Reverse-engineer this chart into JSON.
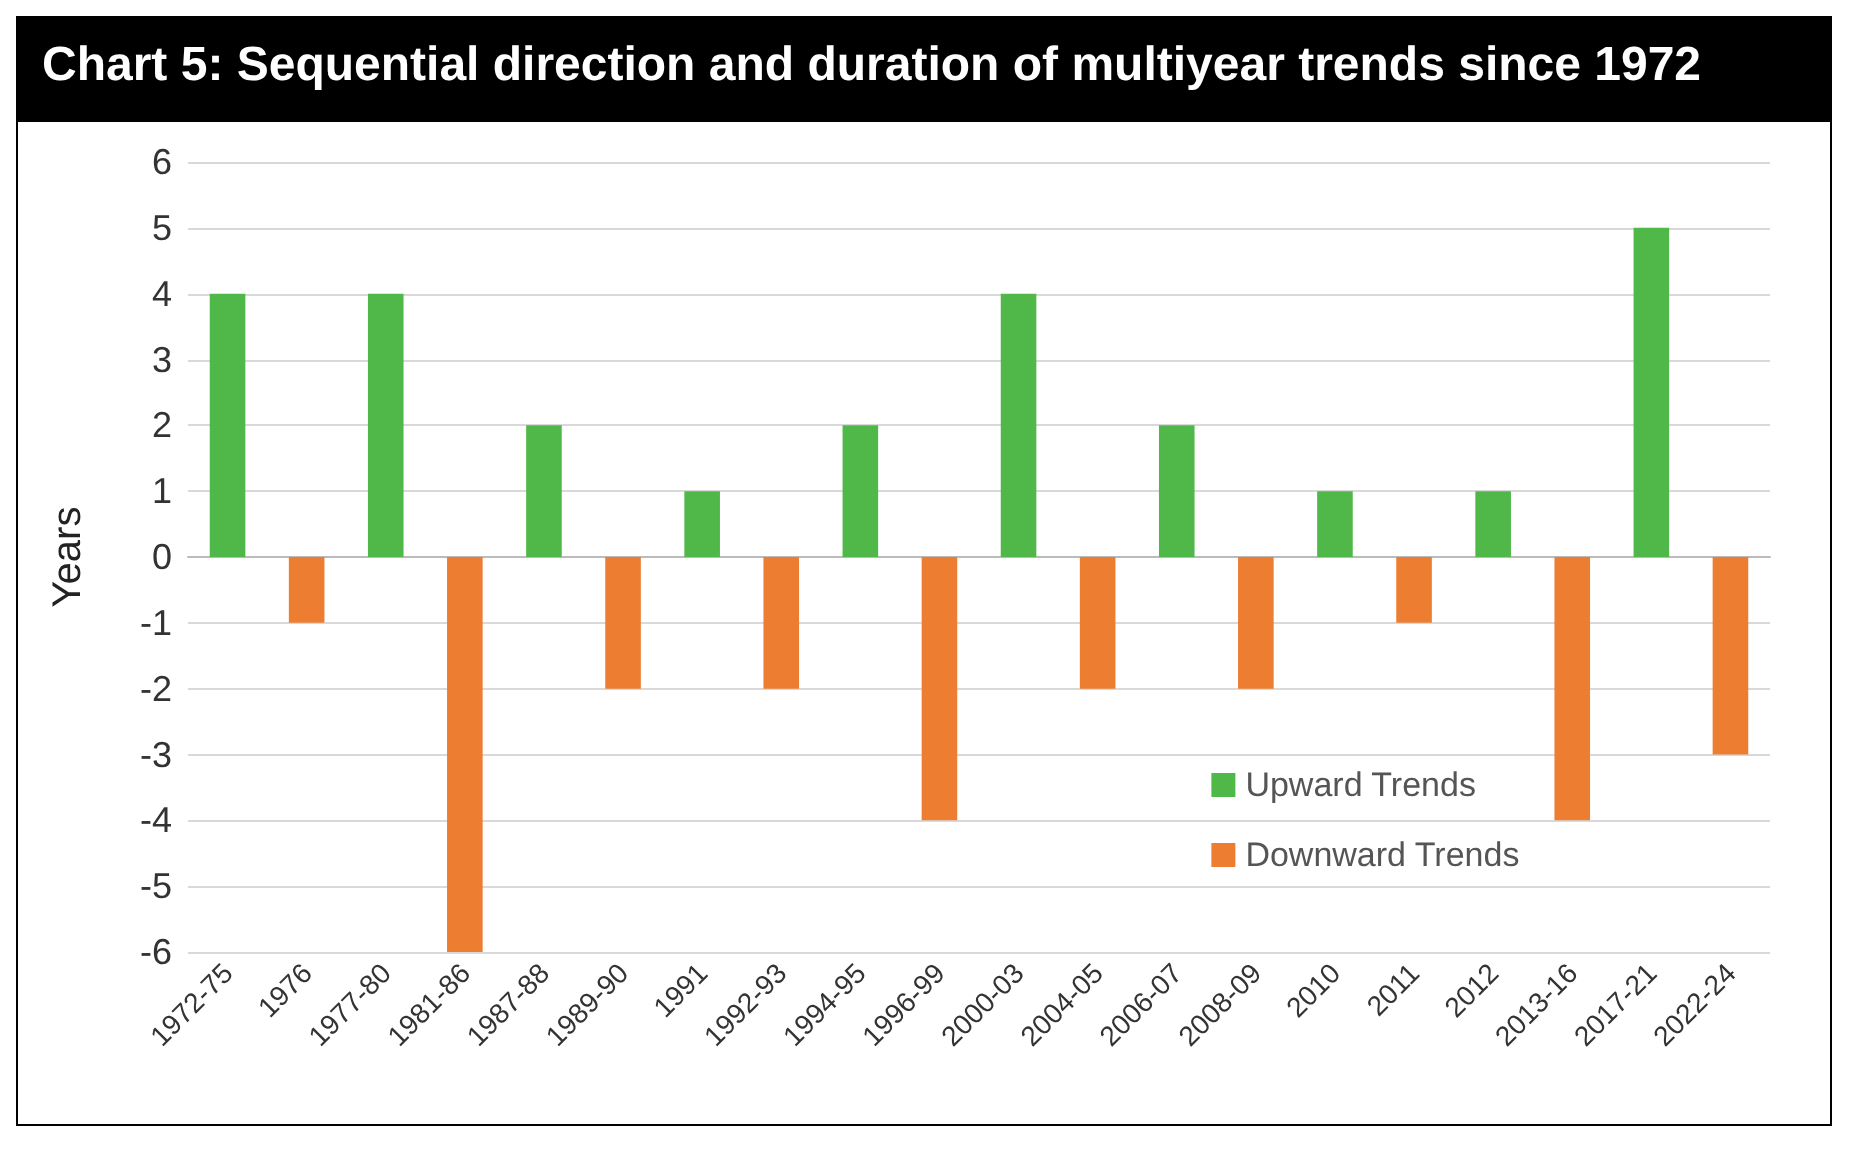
{
  "chart_data": {
    "type": "bar",
    "title": "Chart 5: Sequential direction and duration of multiyear trends since 1972",
    "ylabel": "Years",
    "categories": [
      "1972-75",
      "1976",
      "1977-80",
      "1981-86",
      "1987-88",
      "1989-90",
      "1991",
      "1992-93",
      "1994-95",
      "1996-99",
      "2000-03",
      "2004-05",
      "2006-07",
      "2008-09",
      "2010",
      "2011",
      "2012",
      "2013-16",
      "2017-21",
      "2022-24"
    ],
    "series": [
      {
        "name": "Upward Trends",
        "color": "#4fb848",
        "values": [
          4,
          null,
          4,
          null,
          2,
          null,
          1,
          null,
          2,
          null,
          4,
          null,
          2,
          null,
          1,
          null,
          1,
          null,
          5,
          null
        ]
      },
      {
        "name": "Downward Trends",
        "color": "#ed7d31",
        "values": [
          null,
          -1,
          null,
          -6,
          null,
          -2,
          null,
          -2,
          null,
          -4,
          null,
          -2,
          null,
          -2,
          null,
          -1,
          null,
          -4,
          null,
          -3
        ]
      }
    ],
    "ylim": [
      -6,
      6
    ],
    "yticks": [
      -6,
      -5,
      -4,
      -3,
      -2,
      -1,
      0,
      1,
      2,
      3,
      4,
      5,
      6
    ],
    "grid": "y",
    "legend": "bottom right"
  }
}
